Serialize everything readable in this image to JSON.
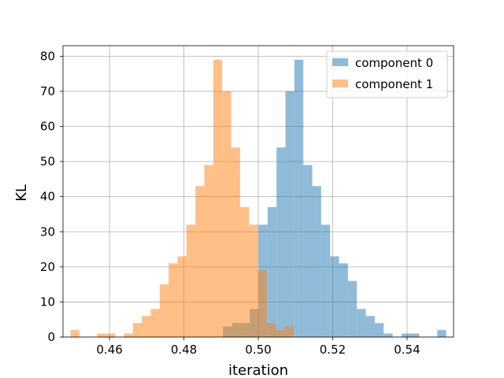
{
  "chart_data": {
    "type": "histogram",
    "xlabel": "iteration",
    "ylabel": "KL",
    "xlim": [
      0.4475,
      0.5525
    ],
    "ylim": [
      0,
      83
    ],
    "xticks": [
      0.46,
      0.48,
      0.5,
      0.52,
      0.54
    ],
    "xtick_labels": [
      "0.46",
      "0.48",
      "0.50",
      "0.52",
      "0.54"
    ],
    "yticks": [
      0,
      10,
      20,
      30,
      40,
      50,
      60,
      70,
      80
    ],
    "ytick_labels": [
      "0",
      "10",
      "20",
      "30",
      "40",
      "50",
      "60",
      "70",
      "80"
    ],
    "grid": true,
    "legend": "top-right",
    "series": [
      {
        "name": "component 0",
        "color": "#1f77b4",
        "opacity": 0.5,
        "bins": [
          [
            0.4905,
            0.4929,
            3
          ],
          [
            0.4929,
            0.4953,
            4
          ],
          [
            0.4953,
            0.4977,
            4
          ],
          [
            0.4977,
            0.5001,
            8
          ],
          [
            0.5001,
            0.5025,
            32
          ],
          [
            0.5025,
            0.5049,
            37
          ],
          [
            0.5049,
            0.5073,
            54
          ],
          [
            0.5073,
            0.5097,
            70
          ],
          [
            0.5097,
            0.5121,
            79
          ],
          [
            0.5121,
            0.5145,
            49
          ],
          [
            0.5145,
            0.5169,
            43
          ],
          [
            0.5169,
            0.5193,
            32
          ],
          [
            0.5193,
            0.5217,
            23
          ],
          [
            0.5217,
            0.5241,
            21
          ],
          [
            0.5241,
            0.5265,
            16
          ],
          [
            0.5265,
            0.5289,
            8
          ],
          [
            0.5289,
            0.5313,
            6
          ],
          [
            0.5313,
            0.5337,
            4
          ],
          [
            0.5337,
            0.5361,
            1
          ],
          [
            0.5385,
            0.5409,
            1
          ],
          [
            0.5409,
            0.5433,
            1
          ],
          [
            0.5481,
            0.5505,
            2
          ]
        ]
      },
      {
        "name": "component 1",
        "color": "#ff7f0e",
        "opacity": 0.5,
        "bins": [
          [
            0.4495,
            0.4519,
            2
          ],
          [
            0.4567,
            0.4591,
            1
          ],
          [
            0.4591,
            0.4615,
            1
          ],
          [
            0.4639,
            0.4663,
            1
          ],
          [
            0.4663,
            0.4687,
            4
          ],
          [
            0.4687,
            0.4711,
            6
          ],
          [
            0.4711,
            0.4735,
            8
          ],
          [
            0.4735,
            0.4759,
            15
          ],
          [
            0.4759,
            0.4783,
            21
          ],
          [
            0.4783,
            0.4807,
            23
          ],
          [
            0.4807,
            0.4831,
            32
          ],
          [
            0.4831,
            0.4855,
            43
          ],
          [
            0.4855,
            0.4879,
            49
          ],
          [
            0.4879,
            0.4903,
            79
          ],
          [
            0.4903,
            0.4927,
            70
          ],
          [
            0.4927,
            0.4951,
            54
          ],
          [
            0.4951,
            0.4975,
            37
          ],
          [
            0.4975,
            0.4999,
            32
          ],
          [
            0.4999,
            0.5023,
            19
          ],
          [
            0.5023,
            0.5047,
            4
          ],
          [
            0.5047,
            0.5071,
            2
          ],
          [
            0.5071,
            0.5095,
            3
          ]
        ]
      }
    ]
  }
}
